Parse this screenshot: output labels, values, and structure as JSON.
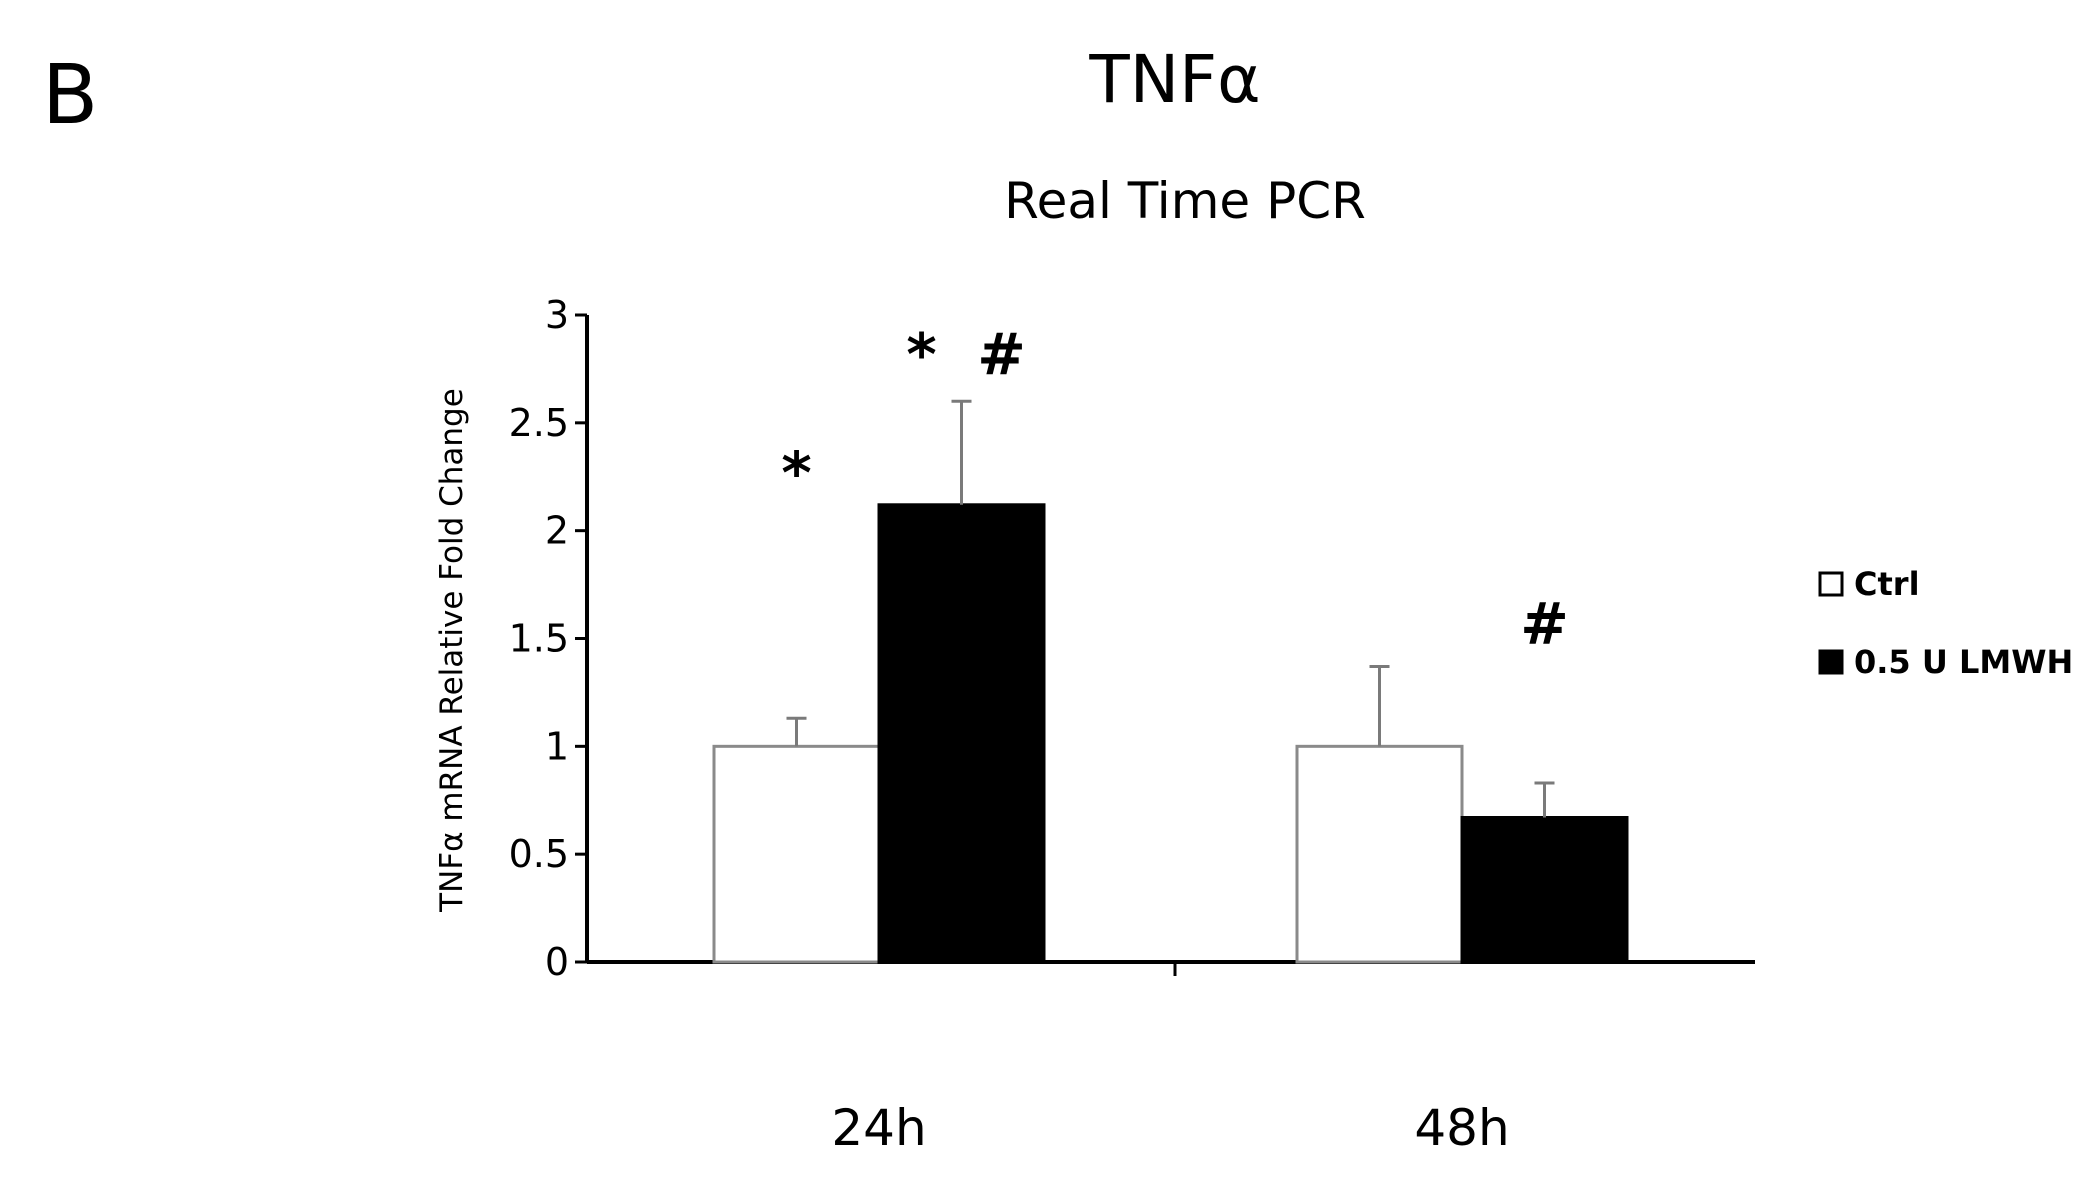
{
  "panel_letter": "B",
  "chart_data": {
    "type": "bar",
    "title": "TNFα",
    "subtitle": "Real Time PCR",
    "xlabel": "",
    "ylabel": "TNFα mRNA Relative Fold Change",
    "ylim": [
      0,
      3
    ],
    "yticks": [
      0,
      0.5,
      1,
      1.5,
      2,
      2.5,
      3
    ],
    "ytick_labels": [
      "0",
      "0.5",
      "1",
      "1.5",
      "2",
      "2.5",
      "3"
    ],
    "categories": [
      "24h",
      "48h"
    ],
    "series": [
      {
        "name": "Ctrl",
        "color": "#ffffff",
        "values": [
          1.0,
          1.0
        ],
        "errors": [
          0.13,
          0.37
        ]
      },
      {
        "name": "0.5 U LMWH",
        "color": "#000000",
        "values": [
          2.12,
          0.67
        ],
        "errors": [
          0.48,
          0.16
        ]
      }
    ],
    "annotations": [
      {
        "text": "*",
        "category": 0,
        "series": 0,
        "y": 2.35
      },
      {
        "text": "*",
        "category": 0,
        "series": 1,
        "y": 2.9
      },
      {
        "text": "#",
        "category": 0,
        "series": 1,
        "y": 2.9
      },
      {
        "text": "#",
        "category": 1,
        "series": 1,
        "y": 1.65
      }
    ],
    "grid": false,
    "legend_position": "right"
  }
}
